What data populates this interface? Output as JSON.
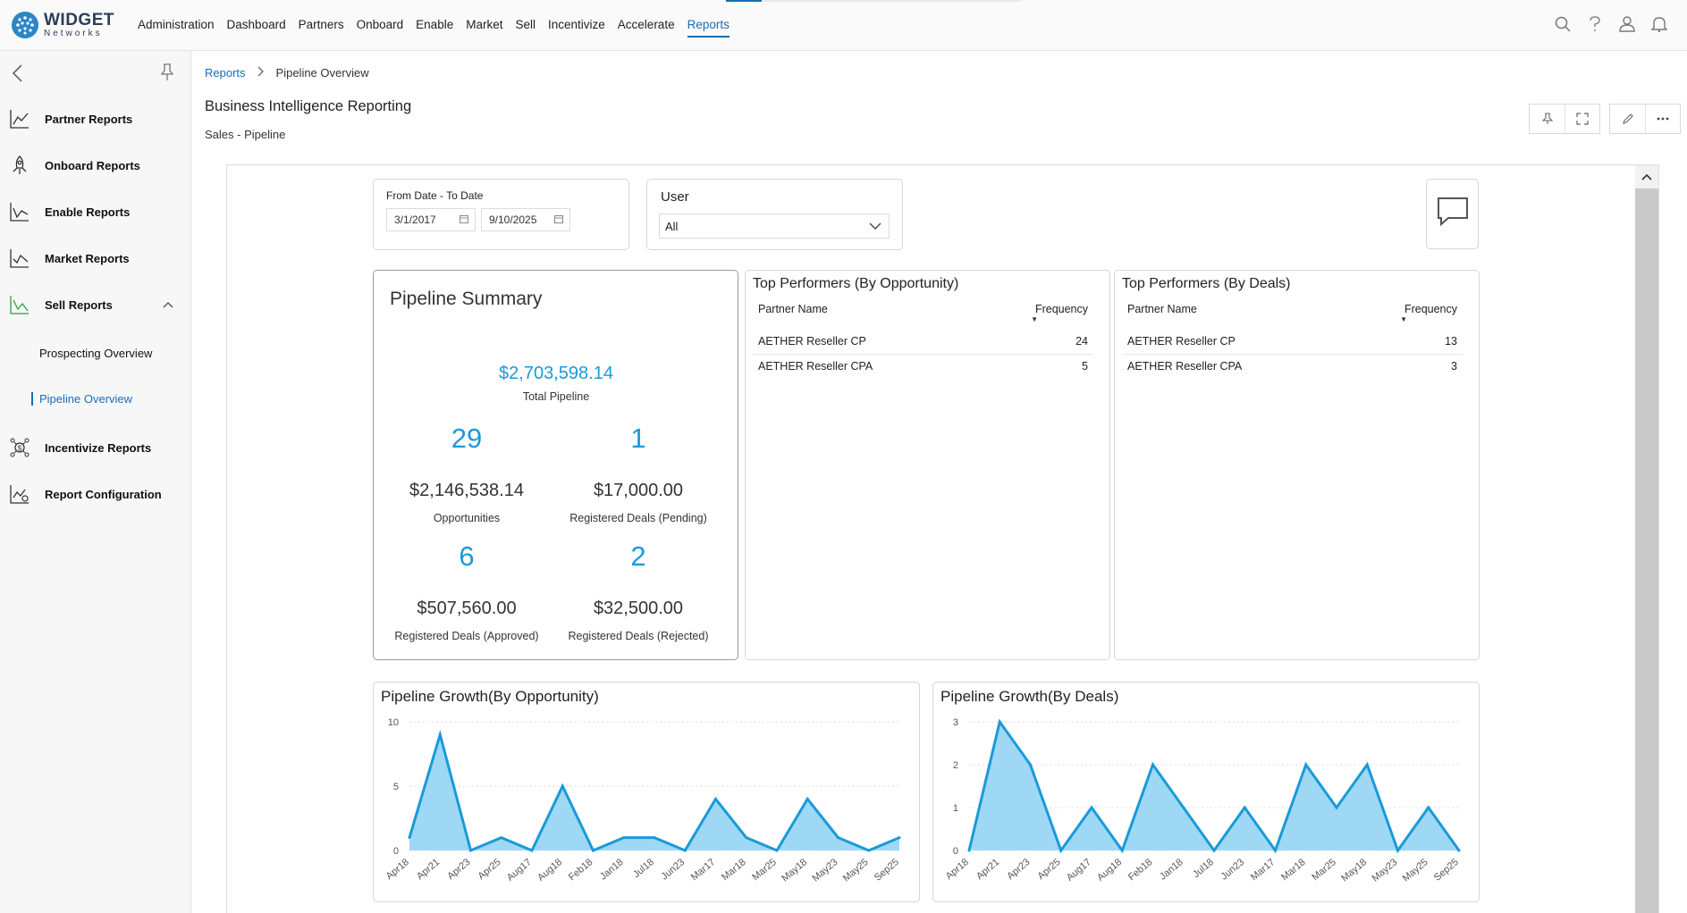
{
  "brand": {
    "name": "WIDGET",
    "tagline": "Networks"
  },
  "nav": {
    "items": [
      {
        "label": "Administration"
      },
      {
        "label": "Dashboard"
      },
      {
        "label": "Partners"
      },
      {
        "label": "Onboard"
      },
      {
        "label": "Enable"
      },
      {
        "label": "Market"
      },
      {
        "label": "Sell"
      },
      {
        "label": "Incentivize"
      },
      {
        "label": "Accelerate"
      },
      {
        "label": "Reports",
        "active": true
      }
    ]
  },
  "sidebar": {
    "items": [
      {
        "label": "Partner Reports",
        "icon": "chart-line-icon"
      },
      {
        "label": "Onboard Reports",
        "icon": "rocket-icon"
      },
      {
        "label": "Enable Reports",
        "icon": "chart-line-icon"
      },
      {
        "label": "Market Reports",
        "icon": "chart-line-icon"
      },
      {
        "label": "Sell Reports",
        "icon": "chart-line-icon",
        "expanded": true
      },
      {
        "label": "Incentivize Reports",
        "icon": "money-gear-icon"
      },
      {
        "label": "Report Configuration",
        "icon": "chart-config-icon"
      }
    ],
    "sub_items": [
      {
        "label": "Prospecting Overview"
      },
      {
        "label": "Pipeline Overview",
        "active": true
      }
    ]
  },
  "breadcrumb": {
    "root": "Reports",
    "current": "Pipeline Overview"
  },
  "page": {
    "title": "Business Intelligence Reporting",
    "subtitle": "Sales - Pipeline"
  },
  "filters": {
    "date_label": "From Date - To Date",
    "from_date": "3/1/2017",
    "to_date": "9/10/2025",
    "user_label": "User",
    "user_value": "All"
  },
  "summary": {
    "title": "Pipeline Summary",
    "total_value": "$2,703,598.14",
    "total_label": "Total Pipeline",
    "stats": [
      {
        "count": "29",
        "amount": "$2,146,538.14",
        "label": "Opportunities"
      },
      {
        "count": "1",
        "amount": "$17,000.00",
        "label": "Registered Deals (Pending)"
      },
      {
        "count": "6",
        "amount": "$507,560.00",
        "label": "Registered Deals (Approved)"
      },
      {
        "count": "2",
        "amount": "$32,500.00",
        "label": "Registered Deals (Rejected)"
      }
    ]
  },
  "top_opportunity": {
    "title": "Top Performers (By Opportunity)",
    "col_name": "Partner Name",
    "col_freq": "Frequency",
    "rows": [
      {
        "name": "AETHER Reseller CP",
        "freq": "24"
      },
      {
        "name": "AETHER Reseller CPA",
        "freq": "5"
      }
    ]
  },
  "top_deals": {
    "title": "Top Performers (By Deals)",
    "col_name": "Partner Name",
    "col_freq": "Frequency",
    "rows": [
      {
        "name": "AETHER Reseller CP",
        "freq": "13"
      },
      {
        "name": "AETHER Reseller CPA",
        "freq": "3"
      }
    ]
  },
  "chart_data": [
    {
      "type": "area",
      "title": "Pipeline Growth(By Opportunity)",
      "ylim": [
        0,
        10
      ],
      "yticks": [
        0,
        5,
        10
      ],
      "x": [
        "Apr18",
        "Apr21",
        "Apr23",
        "Apr25",
        "Aug17",
        "Aug18",
        "Feb18",
        "Jan18",
        "Jul18",
        "Jun23",
        "Mar17",
        "Mar18",
        "Mar25",
        "May18",
        "May23",
        "May25",
        "Sep25"
      ],
      "series": [
        {
          "values": [
            1,
            9,
            0,
            1,
            0,
            5,
            0,
            1,
            1,
            0,
            4,
            1,
            0,
            4,
            1,
            0,
            1
          ]
        }
      ],
      "grid": true,
      "color": "#1a9ad9",
      "fill": "#9fd8f5"
    },
    {
      "type": "area",
      "title": "Pipeline Growth(By Deals)",
      "ylim": [
        0,
        3
      ],
      "yticks": [
        0,
        1,
        2,
        3
      ],
      "x": [
        "Apr18",
        "Apr21",
        "Apr23",
        "Apr25",
        "Aug17",
        "Aug18",
        "Feb18",
        "Jan18",
        "Jul18",
        "Jun23",
        "Mar17",
        "Mar18",
        "Mar25",
        "May18",
        "May23",
        "May25",
        "Sep25"
      ],
      "series": [
        {
          "values": [
            0,
            3,
            2,
            0,
            1,
            0,
            2,
            1,
            0,
            1,
            0,
            2,
            1,
            2,
            0,
            1,
            0
          ]
        }
      ],
      "grid": true,
      "color": "#1a9ad9",
      "fill": "#9fd8f5"
    }
  ]
}
